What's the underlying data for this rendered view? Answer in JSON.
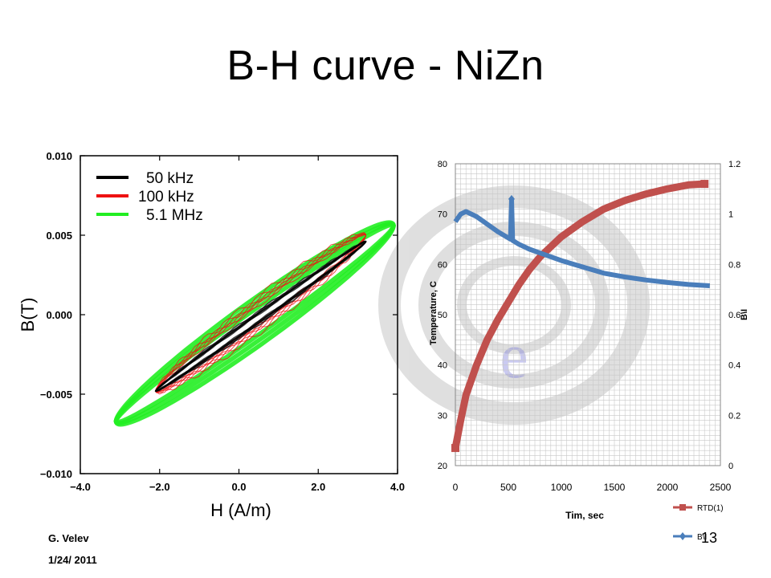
{
  "slide": {
    "title": "B-H curve - NiZn",
    "author": "G. Velev",
    "date": "1/24/ 2011",
    "page_number": "13"
  },
  "colors": {
    "black_series": "#000000",
    "red_series": "#ee1111",
    "green_series": "#22ee22",
    "rtd_series": "#c0504d",
    "b_series": "#4a7ebb",
    "grid": "#c8c8c8"
  },
  "chart_data": [
    {
      "type": "line",
      "title": "",
      "xlabel": "H (A/m)",
      "ylabel": "B(T)",
      "xlim": [
        -4.0,
        4.0
      ],
      "ylim": [
        -0.01,
        0.01
      ],
      "xticks": [
        "−4.0",
        "−2.0",
        "0.0",
        "2.0",
        "4.0"
      ],
      "yticks": [
        "0.010",
        "0.005",
        "0.000",
        "−0.005",
        "−0.010"
      ],
      "legend_position": "top-left",
      "series": [
        {
          "name": "50 kHz",
          "color": "#000000",
          "loop": {
            "h_min": -2.1,
            "h_max": 3.2,
            "b_min": -0.0048,
            "b_max": 0.0046,
            "half_width": 0.0004
          }
        },
        {
          "name": "100 kHz",
          "color": "#ee1111",
          "loop": {
            "h_min": -2.1,
            "h_max": 3.2,
            "b_min": -0.0048,
            "b_max": 0.005,
            "half_width": 0.0011
          }
        },
        {
          "name": "5.1 MHz",
          "color": "#22ee22",
          "loop": {
            "h_min": -3.1,
            "h_max": 3.9,
            "b_min": -0.0067,
            "b_max": 0.0056,
            "half_width": 0.0016
          }
        }
      ]
    },
    {
      "type": "line",
      "title": "",
      "xlabel": "Tim, sec",
      "ylabel": "Temperature, C",
      "y2label": "B\\I",
      "xlim": [
        0,
        2500
      ],
      "ylim": [
        20,
        80
      ],
      "y2lim": [
        0,
        1.2
      ],
      "xticks": [
        "0",
        "500",
        "1000",
        "1500",
        "2000",
        "2500"
      ],
      "yticks": [
        "20",
        "30",
        "40",
        "50",
        "60",
        "70",
        "80"
      ],
      "y2ticks": [
        "0",
        "0.2",
        "0.4",
        "0.6",
        "0.8",
        "1",
        "1.2"
      ],
      "legend_position": "bottom-right",
      "series": [
        {
          "name": "RTD(1)",
          "color": "#c0504d",
          "axis": "left",
          "x": [
            0,
            50,
            100,
            200,
            300,
            400,
            500,
            600,
            700,
            800,
            1000,
            1200,
            1400,
            1600,
            1800,
            2000,
            2200,
            2350
          ],
          "y": [
            23.5,
            29,
            34,
            40,
            45,
            49,
            52.5,
            56,
            59,
            61.5,
            65.5,
            68.5,
            71,
            72.7,
            74,
            75,
            75.8,
            76
          ]
        },
        {
          "name": "B\\I",
          "color": "#4a7ebb",
          "axis": "right",
          "x": [
            0,
            50,
            100,
            200,
            300,
            400,
            500,
            520,
            530,
            540,
            600,
            700,
            800,
            1000,
            1200,
            1400,
            1600,
            1800,
            2000,
            2200,
            2400
          ],
          "y": [
            0.97,
            1.0,
            1.01,
            0.99,
            0.96,
            0.93,
            0.905,
            0.9,
            1.06,
            0.895,
            0.88,
            0.86,
            0.845,
            0.815,
            0.79,
            0.765,
            0.75,
            0.738,
            0.728,
            0.72,
            0.715
          ]
        }
      ]
    }
  ]
}
